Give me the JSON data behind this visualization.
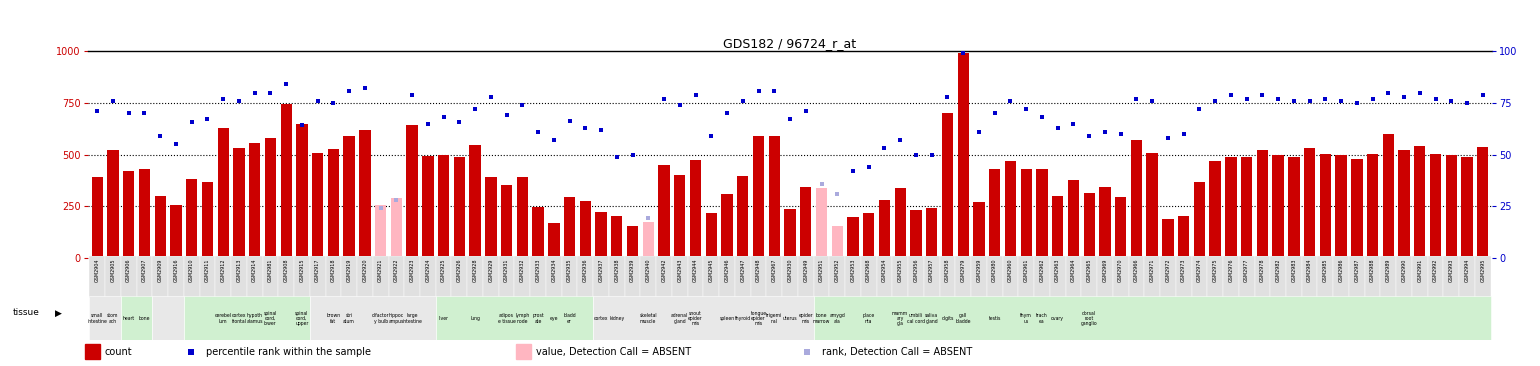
{
  "title": "GDS182 / 96724_r_at",
  "samples": [
    "GSM2904",
    "GSM2905",
    "GSM2906",
    "GSM2907",
    "GSM2909",
    "GSM2916",
    "GSM2910",
    "GSM2911",
    "GSM2912",
    "GSM2913",
    "GSM2914",
    "GSM2981",
    "GSM2908",
    "GSM2915",
    "GSM2917",
    "GSM2918",
    "GSM2919",
    "GSM2920",
    "GSM2921",
    "GSM2922",
    "GSM2923",
    "GSM2924",
    "GSM2925",
    "GSM2926",
    "GSM2928",
    "GSM2929",
    "GSM2931",
    "GSM2932",
    "GSM2933",
    "GSM2934",
    "GSM2935",
    "GSM2936",
    "GSM2937",
    "GSM2938",
    "GSM2939",
    "GSM2940",
    "GSM2942",
    "GSM2943",
    "GSM2944",
    "GSM2945",
    "GSM2946",
    "GSM2947",
    "GSM2948",
    "GSM2967",
    "GSM2930",
    "GSM2949",
    "GSM2951",
    "GSM2952",
    "GSM2953",
    "GSM2968",
    "GSM2954",
    "GSM2955",
    "GSM2956",
    "GSM2957",
    "GSM2958",
    "GSM2979",
    "GSM2959",
    "GSM2980",
    "GSM2960",
    "GSM2961",
    "GSM2962",
    "GSM2963",
    "GSM2964",
    "GSM2965",
    "GSM2969",
    "GSM2970",
    "GSM2966",
    "GSM2971",
    "GSM2972",
    "GSM2973",
    "GSM2974",
    "GSM2975",
    "GSM2976",
    "GSM2977",
    "GSM2978",
    "GSM2982",
    "GSM2983",
    "GSM2984",
    "GSM2985",
    "GSM2986",
    "GSM2987",
    "GSM2988",
    "GSM2989",
    "GSM2990",
    "GSM2991",
    "GSM2992",
    "GSM2993",
    "GSM2994",
    "GSM2995"
  ],
  "bar_values": [
    390,
    520,
    420,
    430,
    300,
    255,
    380,
    370,
    630,
    530,
    555,
    580,
    745,
    650,
    510,
    525,
    590,
    620,
    255,
    290,
    645,
    495,
    500,
    490,
    545,
    390,
    355,
    390,
    245,
    170,
    295,
    275,
    225,
    205,
    155,
    175,
    450,
    400,
    475,
    220,
    310,
    395,
    590,
    590,
    235,
    345,
    340,
    155,
    200,
    220,
    280,
    340,
    230,
    240,
    700,
    990,
    270,
    430,
    470,
    430,
    430,
    300,
    375,
    315,
    345,
    295,
    570,
    510,
    190,
    205,
    370,
    470,
    490,
    490,
    520,
    500,
    490,
    530,
    505,
    500,
    480,
    505,
    600,
    520,
    540,
    505,
    500,
    490,
    535
  ],
  "bar_absent": [
    false,
    false,
    false,
    false,
    false,
    false,
    false,
    false,
    false,
    false,
    false,
    false,
    false,
    false,
    false,
    false,
    false,
    false,
    true,
    true,
    false,
    false,
    false,
    false,
    false,
    false,
    false,
    false,
    false,
    false,
    false,
    false,
    false,
    false,
    false,
    true,
    false,
    false,
    false,
    false,
    false,
    false,
    false,
    false,
    false,
    false,
    true,
    true,
    false,
    false,
    false,
    false,
    false,
    false,
    false,
    false,
    false,
    false,
    false,
    false,
    false,
    false,
    false,
    false,
    false,
    false,
    false,
    false,
    false,
    false,
    false,
    false,
    false,
    false,
    false,
    false,
    false,
    false,
    false,
    false,
    false,
    false,
    false,
    false,
    false,
    false,
    false,
    false,
    false
  ],
  "rank_values": [
    710,
    760,
    700,
    700,
    590,
    550,
    660,
    670,
    770,
    760,
    800,
    800,
    840,
    645,
    760,
    750,
    810,
    820,
    240,
    280,
    790,
    650,
    680,
    660,
    720,
    780,
    690,
    740,
    610,
    570,
    665,
    630,
    620,
    490,
    500,
    195,
    770,
    740,
    790,
    590,
    700,
    760,
    810,
    810,
    670,
    710,
    360,
    310,
    420,
    440,
    530,
    570,
    500,
    500,
    780,
    990,
    610,
    700,
    760,
    720,
    680,
    630,
    650,
    590,
    610,
    600,
    770,
    760,
    580,
    600,
    720,
    760,
    790,
    770,
    790,
    770,
    760,
    760,
    770,
    760,
    750,
    770,
    800,
    780,
    800,
    770,
    760,
    750,
    790
  ],
  "rank_absent": [
    false,
    false,
    false,
    false,
    false,
    false,
    false,
    false,
    false,
    false,
    false,
    false,
    false,
    false,
    false,
    false,
    false,
    false,
    true,
    true,
    false,
    false,
    false,
    false,
    false,
    false,
    false,
    false,
    false,
    false,
    false,
    false,
    false,
    false,
    false,
    true,
    false,
    false,
    false,
    false,
    false,
    false,
    false,
    false,
    false,
    false,
    true,
    true,
    false,
    false,
    false,
    false,
    false,
    false,
    false,
    false,
    false,
    false,
    false,
    false,
    false,
    false,
    false,
    false,
    false,
    false,
    false,
    false,
    false,
    false,
    false,
    false,
    false,
    false,
    false,
    false,
    false,
    false,
    false,
    false,
    false,
    false,
    false,
    false,
    false,
    false,
    false,
    false,
    false
  ],
  "bar_color": "#CC0000",
  "bar_absent_color": "#FFB6C1",
  "rank_color": "#0000CC",
  "rank_absent_color": "#AAAADD",
  "bg_color": "#FFFFFF",
  "left_axis_color": "#CC0000",
  "right_axis_color": "#0000CC",
  "ylim_left": [
    0,
    1000
  ],
  "ylim_right": [
    0,
    100
  ],
  "yticks_left": [
    0,
    250,
    500,
    750,
    1000
  ],
  "yticks_right": [
    0,
    25,
    50,
    75,
    100
  ],
  "hlines": [
    250,
    500,
    750
  ],
  "tissue_colors": [
    "#E8E8E8",
    "#D0F0D0"
  ],
  "tissue_bg_ranges": [
    [
      0,
      1,
      0
    ],
    [
      2,
      3,
      1
    ],
    [
      4,
      5,
      0
    ],
    [
      6,
      13,
      1
    ],
    [
      14,
      21,
      0
    ],
    [
      22,
      31,
      1
    ],
    [
      32,
      45,
      0
    ],
    [
      46,
      88,
      1
    ]
  ],
  "tissue_text_data": [
    [
      0,
      "small\nintestine"
    ],
    [
      1,
      "stom\nach"
    ],
    [
      2,
      "heart"
    ],
    [
      3,
      "bone"
    ],
    [
      8,
      "cerebel\nlum"
    ],
    [
      9,
      "cortex\nfrontal"
    ],
    [
      10,
      "hypoth\nalamus"
    ],
    [
      11,
      "spinal\ncord,\nlower"
    ],
    [
      13,
      "spinal\ncord,\nupper"
    ],
    [
      15,
      "brown\nfat"
    ],
    [
      16,
      "stri\natum"
    ],
    [
      18,
      "olfactor\ny bulb"
    ],
    [
      19,
      "hippoc\nampus"
    ],
    [
      20,
      "large\nintestine"
    ],
    [
      22,
      "liver"
    ],
    [
      24,
      "lung"
    ],
    [
      26,
      "adipos\ne tissue"
    ],
    [
      27,
      "lymph\nnode"
    ],
    [
      28,
      "prost\nate"
    ],
    [
      29,
      "eye"
    ],
    [
      30,
      "bladd\ner"
    ],
    [
      32,
      "cortex"
    ],
    [
      33,
      "kidney"
    ],
    [
      35,
      "skeletal\nmuscle"
    ],
    [
      37,
      "adrenal\ngland"
    ],
    [
      38,
      "snout\nepider\nmis"
    ],
    [
      40,
      "spleen"
    ],
    [
      41,
      "thyroid"
    ],
    [
      42,
      "tongue\nepider\nmis"
    ],
    [
      43,
      "trigemi\nnal"
    ],
    [
      44,
      "uterus"
    ],
    [
      45,
      "epider\nmis"
    ],
    [
      46,
      "bone\nmarrow"
    ],
    [
      47,
      "amygd\nala"
    ],
    [
      49,
      "place\nnta"
    ],
    [
      51,
      "mamm\nary\ngla"
    ],
    [
      52,
      "umbili\ncal cord"
    ],
    [
      53,
      "saliva\ngland"
    ],
    [
      54,
      "digits"
    ],
    [
      55,
      "gall\nbladde"
    ],
    [
      57,
      "testis"
    ],
    [
      59,
      "thym\nus"
    ],
    [
      60,
      "trach\nea"
    ],
    [
      61,
      "ovary"
    ],
    [
      63,
      "dorsal\nroot\nganglio"
    ]
  ],
  "legend_items": [
    {
      "label": "count",
      "color": "#CC0000",
      "type": "bar"
    },
    {
      "label": "percentile rank within the sample",
      "color": "#0000CC",
      "type": "square"
    },
    {
      "label": "value, Detection Call = ABSENT",
      "color": "#FFB6C1",
      "type": "bar"
    },
    {
      "label": "rank, Detection Call = ABSENT",
      "color": "#AAAADD",
      "type": "square"
    }
  ]
}
